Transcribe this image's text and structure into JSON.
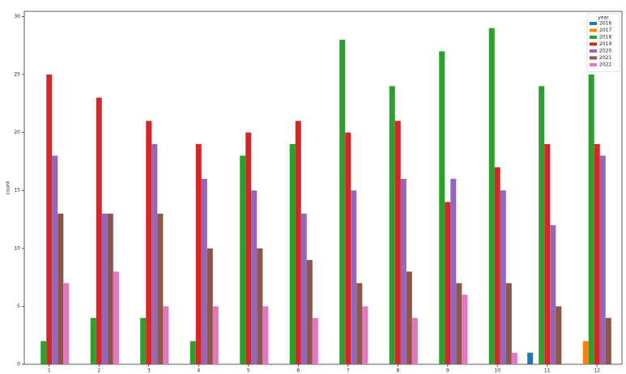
{
  "chart_data": {
    "type": "bar",
    "y_label": "count",
    "categories": [
      "1",
      "2",
      "3",
      "4",
      "5",
      "6",
      "7",
      "8",
      "9",
      "10",
      "11",
      "12"
    ],
    "legend_title": "year",
    "legend_position": "upper right",
    "series": [
      {
        "name": "2016",
        "color": "#1f77b4",
        "values": [
          null,
          null,
          null,
          null,
          null,
          null,
          null,
          null,
          null,
          null,
          1,
          null
        ]
      },
      {
        "name": "2017",
        "color": "#ff7f0e",
        "values": [
          null,
          null,
          null,
          null,
          null,
          null,
          null,
          null,
          null,
          null,
          null,
          2
        ]
      },
      {
        "name": "2018",
        "color": "#2ca02c",
        "values": [
          2,
          4,
          4,
          2,
          18,
          19,
          28,
          24,
          27,
          29,
          24,
          25
        ]
      },
      {
        "name": "2019",
        "color": "#d62728",
        "values": [
          25,
          23,
          21,
          19,
          20,
          21,
          20,
          21,
          14,
          17,
          19,
          19
        ]
      },
      {
        "name": "2020",
        "color": "#9467bd",
        "values": [
          18,
          13,
          19,
          16,
          15,
          13,
          15,
          16,
          16,
          15,
          12,
          18
        ]
      },
      {
        "name": "2021",
        "color": "#8c564b",
        "values": [
          13,
          13,
          13,
          10,
          10,
          9,
          7,
          8,
          7,
          7,
          5,
          4
        ]
      },
      {
        "name": "2022",
        "color": "#e377c2",
        "values": [
          7,
          8,
          5,
          5,
          5,
          4,
          5,
          4,
          6,
          1,
          null,
          null
        ]
      }
    ],
    "ylim": [
      0,
      30.45
    ],
    "yticks": [
      0,
      5,
      10,
      15,
      20,
      25,
      30
    ]
  }
}
